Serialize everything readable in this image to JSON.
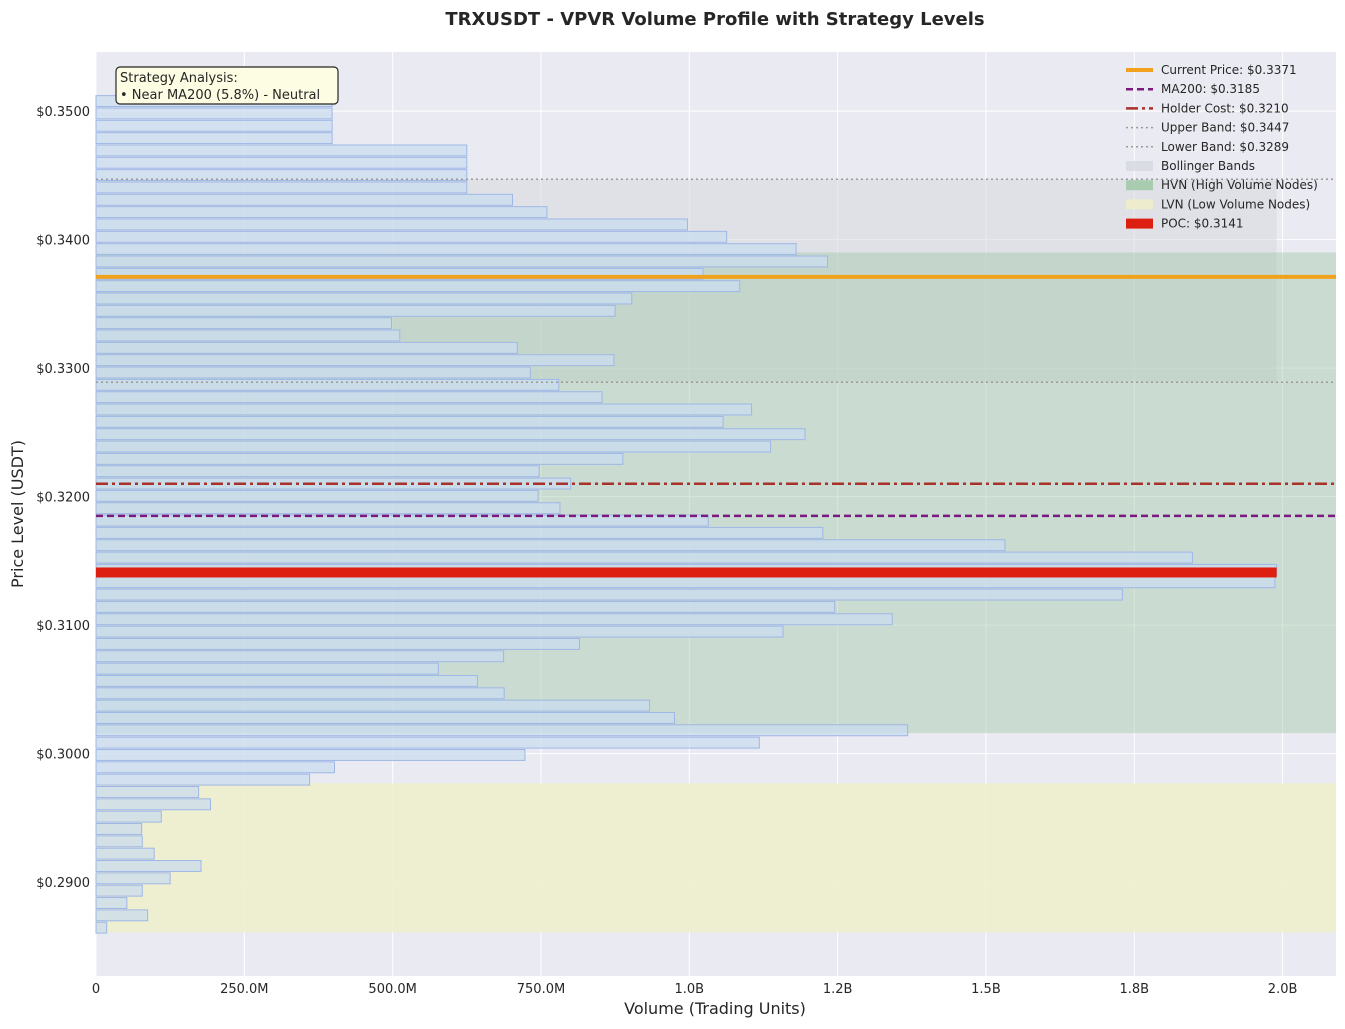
{
  "chart_data": {
    "type": "bar",
    "orientation": "horizontal",
    "title": "TRXUSDT - VPVR Volume Profile with Strategy Levels",
    "xlabel": "Volume (Trading Units)",
    "ylabel": "Price Level (USDT)",
    "xlim": [
      0,
      2090000000
    ],
    "ylim": [
      0.2827,
      0.3546
    ],
    "x_ticks": [
      {
        "value": 0,
        "label": "0"
      },
      {
        "value": 250000000,
        "label": "250.0M"
      },
      {
        "value": 500000000,
        "label": "500.0M"
      },
      {
        "value": 750000000,
        "label": "750.0M"
      },
      {
        "value": 1000000000,
        "label": "1.0B"
      },
      {
        "value": 1250000000,
        "label": "1.2B"
      },
      {
        "value": 1500000000,
        "label": "1.5B"
      },
      {
        "value": 1750000000,
        "label": "1.8B"
      },
      {
        "value": 2000000000,
        "label": "2.0B"
      }
    ],
    "y_ticks": [
      {
        "value": 0.29,
        "label": "$0.2900"
      },
      {
        "value": 0.3,
        "label": "$0.3000"
      },
      {
        "value": 0.31,
        "label": "$0.3100"
      },
      {
        "value": 0.32,
        "label": "$0.3200"
      },
      {
        "value": 0.33,
        "label": "$0.3300"
      },
      {
        "value": 0.34,
        "label": "$0.3400"
      },
      {
        "value": 0.35,
        "label": "$0.3500"
      }
    ],
    "grid": true,
    "legend_position": "top-right",
    "bar_height_price": 0.00085,
    "bars": [
      {
        "price": 0.35078,
        "volume": 398000000
      },
      {
        "price": 0.34982,
        "volume": 398000000
      },
      {
        "price": 0.34886,
        "volume": 398000000
      },
      {
        "price": 0.3479,
        "volume": 398000000
      },
      {
        "price": 0.34694,
        "volume": 625000000
      },
      {
        "price": 0.34598,
        "volume": 625000000
      },
      {
        "price": 0.34502,
        "volume": 625000000
      },
      {
        "price": 0.34406,
        "volume": 625000000
      },
      {
        "price": 0.3431,
        "volume": 702000000
      },
      {
        "price": 0.34214,
        "volume": 760000000
      },
      {
        "price": 0.34118,
        "volume": 997000000
      },
      {
        "price": 0.34022,
        "volume": 1063000000
      },
      {
        "price": 0.33926,
        "volume": 1180000000
      },
      {
        "price": 0.3383,
        "volume": 1233000000
      },
      {
        "price": 0.33734,
        "volume": 1023000000
      },
      {
        "price": 0.33638,
        "volume": 1085000000
      },
      {
        "price": 0.33542,
        "volume": 903000000
      },
      {
        "price": 0.33446,
        "volume": 875000000
      },
      {
        "price": 0.3335,
        "volume": 498000000
      },
      {
        "price": 0.33254,
        "volume": 512000000
      },
      {
        "price": 0.33158,
        "volume": 710000000
      },
      {
        "price": 0.33062,
        "volume": 873000000
      },
      {
        "price": 0.32966,
        "volume": 732000000
      },
      {
        "price": 0.3287,
        "volume": 780000000
      },
      {
        "price": 0.32774,
        "volume": 853000000
      },
      {
        "price": 0.32678,
        "volume": 1105000000
      },
      {
        "price": 0.32582,
        "volume": 1057000000
      },
      {
        "price": 0.32486,
        "volume": 1195000000
      },
      {
        "price": 0.3239,
        "volume": 1137000000
      },
      {
        "price": 0.32294,
        "volume": 888000000
      },
      {
        "price": 0.32198,
        "volume": 747000000
      },
      {
        "price": 0.32102,
        "volume": 800000000
      },
      {
        "price": 0.32006,
        "volume": 745000000
      },
      {
        "price": 0.3191,
        "volume": 782000000
      },
      {
        "price": 0.31814,
        "volume": 1032000000
      },
      {
        "price": 0.31718,
        "volume": 1225000000
      },
      {
        "price": 0.31622,
        "volume": 1532000000
      },
      {
        "price": 0.31526,
        "volume": 1848000000
      },
      {
        "price": 0.3143,
        "volume": 1990000000
      },
      {
        "price": 0.31334,
        "volume": 1987000000
      },
      {
        "price": 0.31238,
        "volume": 1730000000
      },
      {
        "price": 0.31142,
        "volume": 1245000000
      },
      {
        "price": 0.31046,
        "volume": 1342000000
      },
      {
        "price": 0.3095,
        "volume": 1158000000
      },
      {
        "price": 0.30854,
        "volume": 815000000
      },
      {
        "price": 0.30758,
        "volume": 687000000
      },
      {
        "price": 0.30662,
        "volume": 577000000
      },
      {
        "price": 0.30566,
        "volume": 643000000
      },
      {
        "price": 0.3047,
        "volume": 688000000
      },
      {
        "price": 0.30374,
        "volume": 933000000
      },
      {
        "price": 0.30278,
        "volume": 975000000
      },
      {
        "price": 0.30182,
        "volume": 1368000000
      },
      {
        "price": 0.30086,
        "volume": 1118000000
      },
      {
        "price": 0.2999,
        "volume": 723000000
      },
      {
        "price": 0.29894,
        "volume": 402000000
      },
      {
        "price": 0.29798,
        "volume": 360000000
      },
      {
        "price": 0.29702,
        "volume": 173000000
      },
      {
        "price": 0.29606,
        "volume": 193000000
      },
      {
        "price": 0.2951,
        "volume": 110000000
      },
      {
        "price": 0.29414,
        "volume": 77000000
      },
      {
        "price": 0.29318,
        "volume": 78000000
      },
      {
        "price": 0.29222,
        "volume": 98000000
      },
      {
        "price": 0.29126,
        "volume": 177000000
      },
      {
        "price": 0.2903,
        "volume": 125000000
      },
      {
        "price": 0.28934,
        "volume": 78000000
      },
      {
        "price": 0.28838,
        "volume": 52000000
      },
      {
        "price": 0.28742,
        "volume": 87000000
      },
      {
        "price": 0.28646,
        "volume": 18000000
      }
    ],
    "bands": {
      "bollinger": {
        "lower": 0.3289,
        "upper": 0.3447,
        "x_end_volume": 1990000000,
        "color": "#d5d8df"
      },
      "hvn": {
        "lower": 0.3016,
        "upper": 0.339,
        "color": "#a3c9a8"
      },
      "lvn": {
        "lower": 0.2861,
        "upper": 0.2977,
        "color": "#eeeeca"
      }
    },
    "levels": {
      "current_price": {
        "value": 0.3371,
        "color": "#f0a21f"
      },
      "ma200": {
        "value": 0.3185,
        "color": "#7a1a80"
      },
      "holder_cost": {
        "value": 0.321,
        "color": "#a8322b"
      },
      "upper_band": {
        "value": 0.3447,
        "color": "#9a9a9a"
      },
      "lower_band": {
        "value": 0.3289,
        "color": "#9a9a9a"
      },
      "poc": {
        "value": 0.3141,
        "x_end_volume": 1990000000,
        "color": "#dd1f11"
      }
    },
    "legend": [
      {
        "key": "current_price",
        "label": "Current Price: $0.3371"
      },
      {
        "key": "ma200",
        "label": "MA200: $0.3185"
      },
      {
        "key": "holder_cost",
        "label": "Holder Cost: $0.3210"
      },
      {
        "key": "upper_band",
        "label": "Upper Band: $0.3447"
      },
      {
        "key": "lower_band",
        "label": "Lower Band: $0.3289"
      },
      {
        "key": "bollinger",
        "label": "Bollinger Bands"
      },
      {
        "key": "hvn",
        "label": "HVN (High Volume Nodes)"
      },
      {
        "key": "lvn",
        "label": "LVN (Low Volume Nodes)"
      },
      {
        "key": "poc",
        "label": "POC: $0.3141"
      }
    ],
    "annotation": {
      "lines": [
        "Strategy Analysis:",
        "• Near MA200 (5.8%) - Neutral"
      ]
    },
    "colors": {
      "plot_background": "#eaeaf2",
      "bar_fill": "#c9dcef",
      "bar_edge": "#9fb7e6"
    }
  }
}
